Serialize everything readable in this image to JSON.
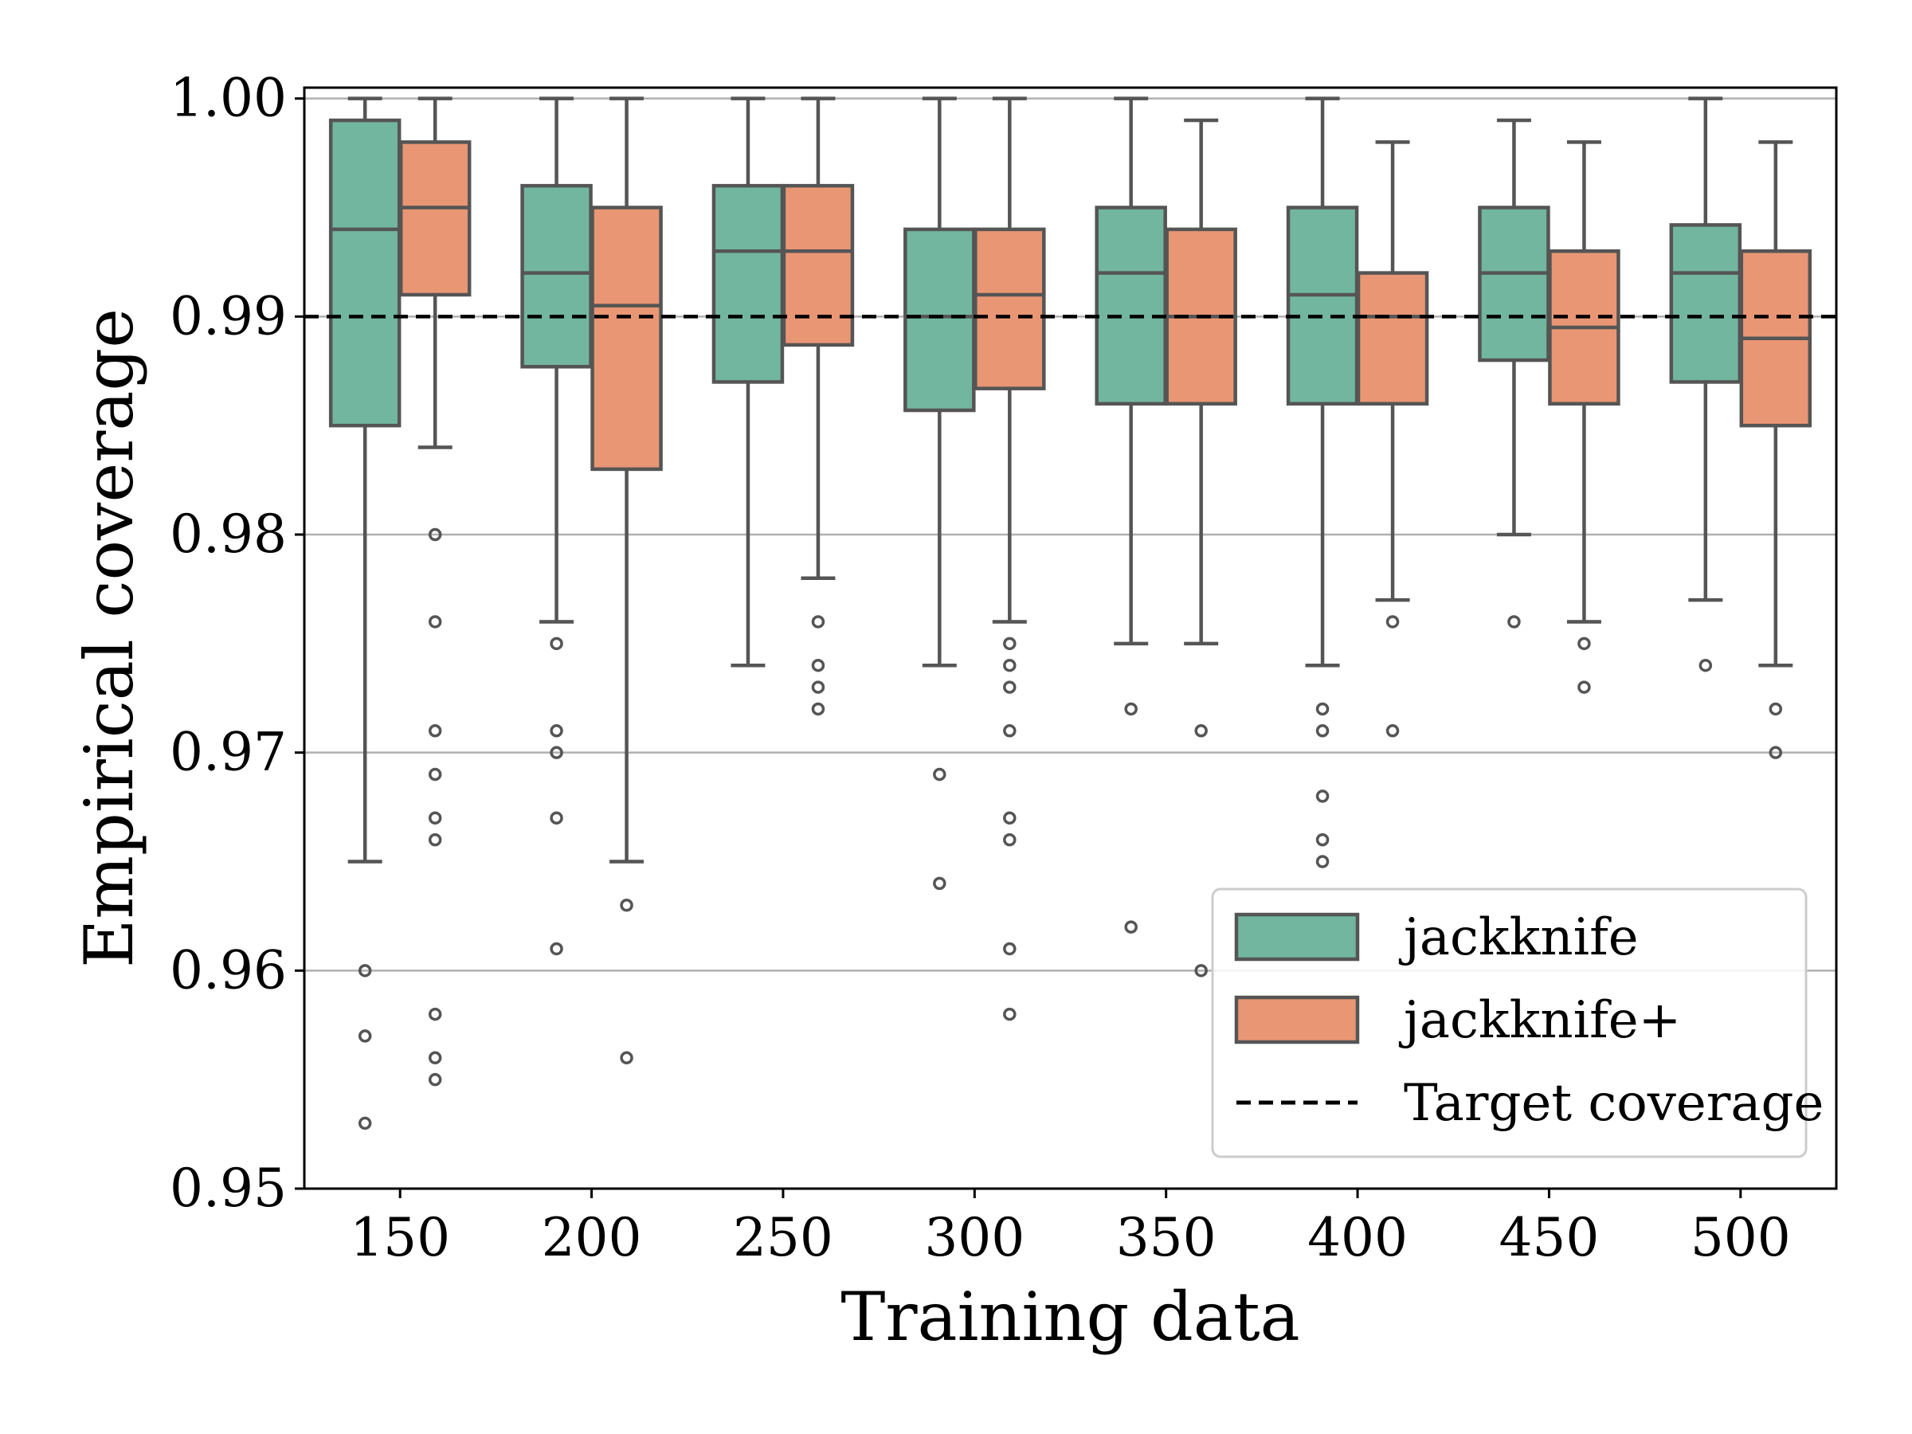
{
  "chart_data": {
    "type": "box",
    "title": "",
    "xlabel": "Training data",
    "ylabel": "Empirical coverage",
    "ylim": [
      0.95,
      1.0005
    ],
    "yticks": [
      0.95,
      0.96,
      0.97,
      0.98,
      0.99,
      1.0
    ],
    "ytick_labels": [
      "0.95",
      "0.96",
      "0.97",
      "0.98",
      "0.99",
      "1.00"
    ],
    "categories": [
      "150",
      "200",
      "250",
      "300",
      "350",
      "400",
      "450",
      "500"
    ],
    "grid": "horizontal",
    "target_line": {
      "label": "Target coverage",
      "value": 0.99,
      "color": "#000000"
    },
    "series": [
      {
        "name": "jackknife",
        "color": "#72b6a0",
        "boxes": [
          {
            "whisker_low": 0.965,
            "q1": 0.985,
            "median": 0.994,
            "q3": 0.999,
            "whisker_high": 1.0,
            "outliers": [
              0.96,
              0.957,
              0.953
            ]
          },
          {
            "whisker_low": 0.976,
            "q1": 0.9877,
            "median": 0.992,
            "q3": 0.996,
            "whisker_high": 1.0,
            "outliers": [
              0.975,
              0.971,
              0.97,
              0.967,
              0.961
            ]
          },
          {
            "whisker_low": 0.974,
            "q1": 0.987,
            "median": 0.993,
            "q3": 0.996,
            "whisker_high": 1.0,
            "outliers": []
          },
          {
            "whisker_low": 0.974,
            "q1": 0.9857,
            "median": 0.99,
            "q3": 0.994,
            "whisker_high": 1.0,
            "outliers": [
              0.969,
              0.964
            ]
          },
          {
            "whisker_low": 0.975,
            "q1": 0.986,
            "median": 0.992,
            "q3": 0.995,
            "whisker_high": 1.0,
            "outliers": [
              0.972,
              0.962
            ]
          },
          {
            "whisker_low": 0.974,
            "q1": 0.986,
            "median": 0.991,
            "q3": 0.995,
            "whisker_high": 1.0,
            "outliers": [
              0.972,
              0.971,
              0.968,
              0.966,
              0.965
            ]
          },
          {
            "whisker_low": 0.98,
            "q1": 0.988,
            "median": 0.992,
            "q3": 0.995,
            "whisker_high": 0.999,
            "outliers": [
              0.976
            ]
          },
          {
            "whisker_low": 0.977,
            "q1": 0.987,
            "median": 0.992,
            "q3": 0.9942,
            "whisker_high": 1.0,
            "outliers": [
              0.974
            ]
          }
        ]
      },
      {
        "name": "jackknife+",
        "color": "#e99674",
        "boxes": [
          {
            "whisker_low": 0.984,
            "q1": 0.991,
            "median": 0.995,
            "q3": 0.998,
            "whisker_high": 1.0,
            "outliers": [
              0.98,
              0.976,
              0.971,
              0.969,
              0.967,
              0.966,
              0.958,
              0.956,
              0.955
            ]
          },
          {
            "whisker_low": 0.965,
            "q1": 0.983,
            "median": 0.9905,
            "q3": 0.995,
            "whisker_high": 1.0,
            "outliers": [
              0.963,
              0.956
            ]
          },
          {
            "whisker_low": 0.978,
            "q1": 0.9887,
            "median": 0.993,
            "q3": 0.996,
            "whisker_high": 1.0,
            "outliers": [
              0.976,
              0.974,
              0.973,
              0.972
            ]
          },
          {
            "whisker_low": 0.976,
            "q1": 0.9867,
            "median": 0.991,
            "q3": 0.994,
            "whisker_high": 1.0,
            "outliers": [
              0.975,
              0.974,
              0.973,
              0.971,
              0.967,
              0.966,
              0.961,
              0.958
            ]
          },
          {
            "whisker_low": 0.975,
            "q1": 0.986,
            "median": 0.99,
            "q3": 0.994,
            "whisker_high": 0.999,
            "outliers": [
              0.971,
              0.96
            ]
          },
          {
            "whisker_low": 0.977,
            "q1": 0.986,
            "median": 0.99,
            "q3": 0.992,
            "whisker_high": 0.998,
            "outliers": [
              0.976,
              0.971
            ]
          },
          {
            "whisker_low": 0.976,
            "q1": 0.986,
            "median": 0.9895,
            "q3": 0.993,
            "whisker_high": 0.998,
            "outliers": [
              0.975,
              0.973
            ]
          },
          {
            "whisker_low": 0.974,
            "q1": 0.985,
            "median": 0.989,
            "q3": 0.993,
            "whisker_high": 0.998,
            "outliers": [
              0.972,
              0.97
            ]
          }
        ]
      }
    ],
    "legend": {
      "position": "lower-right",
      "entries": [
        "jackknife",
        "jackknife+",
        "Target coverage"
      ]
    }
  }
}
